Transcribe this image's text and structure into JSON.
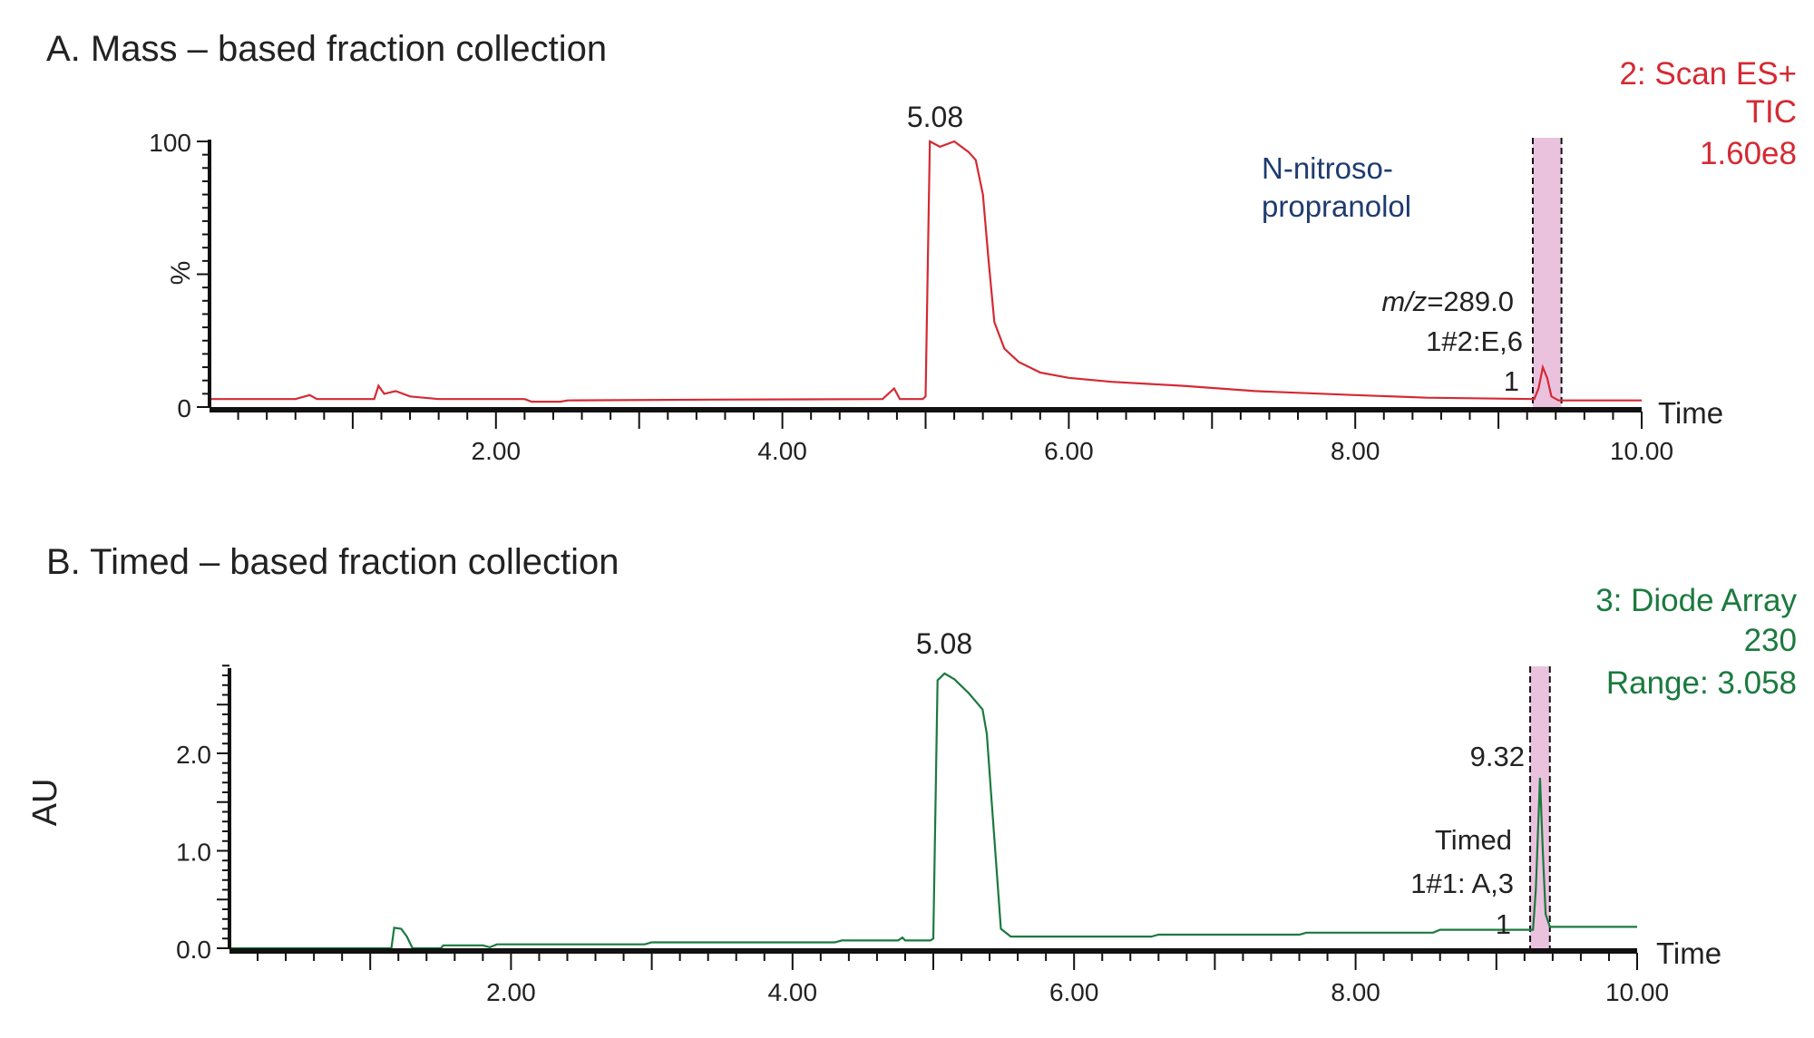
{
  "colors": {
    "mass": "#d42a33",
    "uv": "#1b7a3e",
    "fraction_band": "#ebc2de",
    "compound": "#1f3b70",
    "text": "#222222"
  },
  "chart_data": [
    {
      "type": "line",
      "title": "A. Mass – based fraction collection",
      "trace_label": [
        "2: Scan ES+",
        "TIC",
        "1.60e8"
      ],
      "ylabel": "%",
      "xlabel": "Time",
      "xlim": [
        0,
        10
      ],
      "ylim": [
        0,
        100
      ],
      "xticks": [
        "2.00",
        "4.00",
        "6.00",
        "8.00",
        "10.00"
      ],
      "yticks": [
        "0",
        "100"
      ],
      "peak_label": "5.08",
      "compound_label": [
        "N-nitroso-",
        "propranolol"
      ],
      "fraction_label": [
        "m/z=289.0",
        "1#2:E,6",
        "1"
      ],
      "fraction_window": [
        9.24,
        9.44
      ],
      "series": [
        {
          "points": [
            [
              0,
              3
            ],
            [
              0.6,
              3
            ],
            [
              0.7,
              4.5
            ],
            [
              0.75,
              3
            ],
            [
              1.15,
              3
            ],
            [
              1.18,
              8
            ],
            [
              1.22,
              5
            ],
            [
              1.3,
              6
            ],
            [
              1.4,
              4
            ],
            [
              1.6,
              3
            ],
            [
              2.2,
              3
            ],
            [
              2.25,
              2
            ],
            [
              2.45,
              2
            ],
            [
              2.5,
              2.5
            ],
            [
              3.5,
              2.8
            ],
            [
              4.7,
              3
            ],
            [
              4.78,
              7
            ],
            [
              4.82,
              3
            ],
            [
              4.98,
              3
            ],
            [
              5.0,
              4
            ],
            [
              5.03,
              100
            ],
            [
              5.1,
              98
            ],
            [
              5.2,
              100
            ],
            [
              5.3,
              96
            ],
            [
              5.35,
              93
            ],
            [
              5.4,
              80
            ],
            [
              5.44,
              55
            ],
            [
              5.48,
              32
            ],
            [
              5.55,
              22
            ],
            [
              5.65,
              17
            ],
            [
              5.8,
              13
            ],
            [
              6.0,
              11
            ],
            [
              6.3,
              9.5
            ],
            [
              6.8,
              8
            ],
            [
              7.3,
              6
            ],
            [
              8.0,
              4.5
            ],
            [
              8.5,
              3.5
            ],
            [
              9.25,
              3
            ],
            [
              9.28,
              7
            ],
            [
              9.31,
              15
            ],
            [
              9.34,
              11
            ],
            [
              9.37,
              4
            ],
            [
              9.42,
              2.5
            ],
            [
              10,
              2.5
            ]
          ]
        }
      ]
    },
    {
      "type": "line",
      "title": "B. Timed – based fraction collection",
      "trace_label": [
        "3: Diode Array",
        "230",
        "Range: 3.058"
      ],
      "ylabel": "AU",
      "xlabel": "Time",
      "xlim": [
        0,
        10
      ],
      "ylim": [
        0,
        2.9
      ],
      "xticks": [
        "2.00",
        "4.00",
        "6.00",
        "8.00",
        "10.00"
      ],
      "yticks": [
        "0.0",
        "1.0",
        "2.0"
      ],
      "peak_label": "5.08",
      "fraction_label": [
        "9.32",
        "Timed",
        "1#1: A,3",
        "1"
      ],
      "fraction_window": [
        9.24,
        9.38
      ],
      "series": [
        {
          "points": [
            [
              0,
              0
            ],
            [
              1.15,
              0
            ],
            [
              1.17,
              0.21
            ],
            [
              1.22,
              0.2
            ],
            [
              1.26,
              0.12
            ],
            [
              1.3,
              0
            ],
            [
              1.5,
              0
            ],
            [
              1.52,
              0.03
            ],
            [
              1.8,
              0.03
            ],
            [
              1.85,
              0.01
            ],
            [
              1.9,
              0.04
            ],
            [
              2.95,
              0.04
            ],
            [
              3.0,
              0.06
            ],
            [
              4.3,
              0.06
            ],
            [
              4.35,
              0.08
            ],
            [
              4.75,
              0.08
            ],
            [
              4.78,
              0.11
            ],
            [
              4.8,
              0.08
            ],
            [
              4.98,
              0.08
            ],
            [
              5.0,
              0.1
            ],
            [
              5.03,
              2.75
            ],
            [
              5.08,
              2.82
            ],
            [
              5.15,
              2.76
            ],
            [
              5.25,
              2.62
            ],
            [
              5.35,
              2.45
            ],
            [
              5.38,
              2.2
            ],
            [
              5.41,
              1.6
            ],
            [
              5.44,
              1.0
            ],
            [
              5.48,
              0.2
            ],
            [
              5.55,
              0.12
            ],
            [
              6.55,
              0.12
            ],
            [
              6.6,
              0.14
            ],
            [
              7.6,
              0.14
            ],
            [
              7.65,
              0.16
            ],
            [
              8.55,
              0.16
            ],
            [
              8.6,
              0.19
            ],
            [
              9.26,
              0.19
            ],
            [
              9.28,
              0.6
            ],
            [
              9.31,
              1.75
            ],
            [
              9.33,
              1.0
            ],
            [
              9.35,
              0.35
            ],
            [
              9.38,
              0.22
            ],
            [
              10,
              0.22
            ]
          ]
        }
      ]
    }
  ]
}
